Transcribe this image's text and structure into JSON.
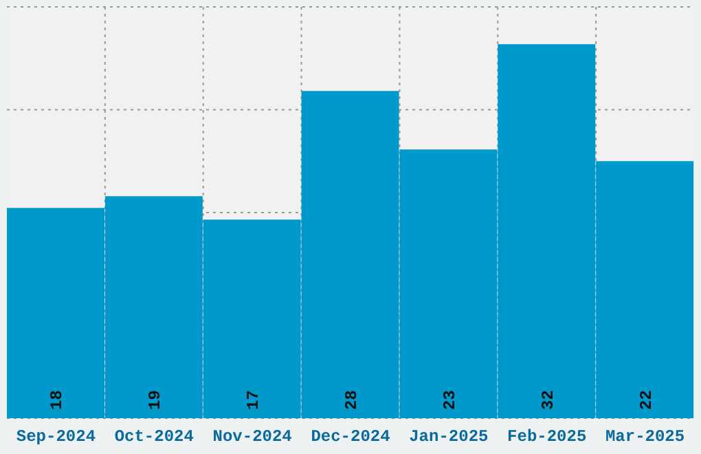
{
  "chart_data": {
    "type": "bar",
    "categories": [
      "Sep-2024",
      "Oct-2024",
      "Nov-2024",
      "Dec-2024",
      "Jan-2025",
      "Feb-2025",
      "Mar-2025"
    ],
    "values": [
      18,
      19,
      17,
      28,
      23,
      32,
      22
    ],
    "color": "#0099cc",
    "data_labels": true,
    "ylim": [
      0,
      35.2
    ],
    "tick_labels": "x",
    "grid": true
  }
}
